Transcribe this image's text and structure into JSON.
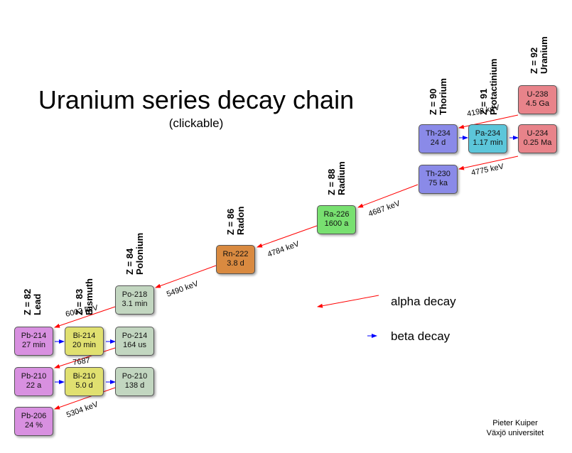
{
  "title": "Uranium series decay chain",
  "subtitle": "(clickable)",
  "columns": [
    {
      "z": "Z = 82",
      "name": "Lead"
    },
    {
      "z": "Z = 83",
      "name": "Bismuth"
    },
    {
      "z": "Z = 84",
      "name": "Polonium"
    },
    {
      "z": "Z = 86",
      "name": "Radon"
    },
    {
      "z": "Z = 88",
      "name": "Radium"
    },
    {
      "z": "Z = 90",
      "name": "Thorium"
    },
    {
      "z": "Z = 91",
      "name": "Protactinium"
    },
    {
      "z": "Z = 92",
      "name": "Uranium"
    }
  ],
  "nuclides": [
    {
      "name": "U-238",
      "halflife": "4.5 Ga"
    },
    {
      "name": "Th-234",
      "halflife": "24 d"
    },
    {
      "name": "Pa-234",
      "halflife": "1.17 min"
    },
    {
      "name": "U-234",
      "halflife": "0.25 Ma"
    },
    {
      "name": "Th-230",
      "halflife": "75 ka"
    },
    {
      "name": "Ra-226",
      "halflife": "1600 a"
    },
    {
      "name": "Rn-222",
      "halflife": "3.8 d"
    },
    {
      "name": "Po-218",
      "halflife": "3.1 min"
    },
    {
      "name": "Pb-214",
      "halflife": "27 min"
    },
    {
      "name": "Bi-214",
      "halflife": "20 min"
    },
    {
      "name": "Po-214",
      "halflife": "164 us"
    },
    {
      "name": "Pb-210",
      "halflife": "22 a"
    },
    {
      "name": "Bi-210",
      "halflife": "5.0 d"
    },
    {
      "name": "Po-210",
      "halflife": "138 d"
    },
    {
      "name": "Pb-206",
      "halflife": "24 %"
    }
  ],
  "energies": [
    "4198 keV",
    "4775 keV",
    "4687 keV",
    "4784 keV",
    "5490 keV",
    "6002 keV",
    "7687",
    "5304 keV"
  ],
  "legend": {
    "alpha": "alpha decay",
    "beta": "beta decay"
  },
  "credit": {
    "name": "Pieter Kuiper",
    "affiliation": "Växjö universitet"
  },
  "colors": {
    "alpha_arrow": "#ff0000",
    "beta_arrow": "#0000ff",
    "uranium": "#e8838a",
    "thorium": "#8a8ae8",
    "protactinium": "#5cc6da",
    "radium": "#78e070",
    "radon": "#d98a40",
    "polonium": "#c2d6c0",
    "bismuth": "#e0e070",
    "lead": "#d890e0"
  }
}
